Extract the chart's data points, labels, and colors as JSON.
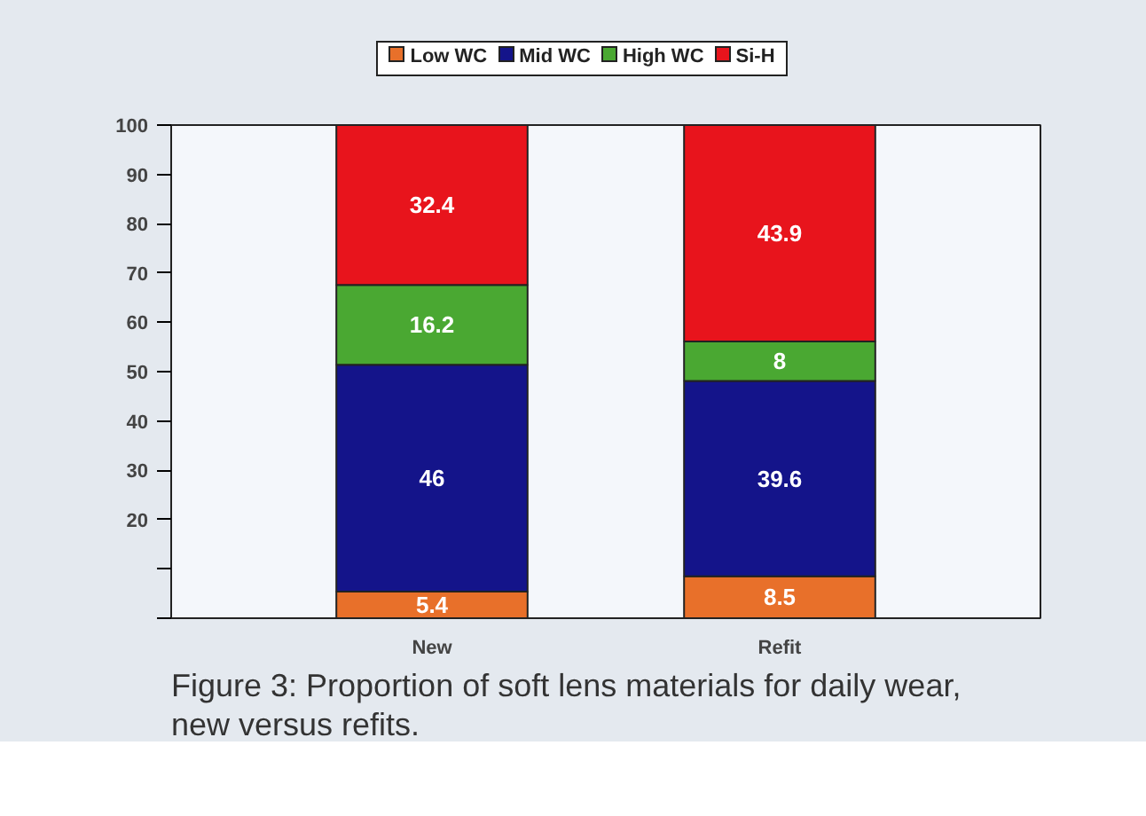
{
  "chart_data": {
    "type": "bar",
    "stacked": true,
    "categories": [
      "New",
      "Refit"
    ],
    "series": [
      {
        "name": "Low WC",
        "color": "#e8702a",
        "values": [
          5.4,
          8.5
        ]
      },
      {
        "name": "Mid WC",
        "color": "#14148a",
        "values": [
          46,
          39.6
        ]
      },
      {
        "name": "High WC",
        "color": "#4aa832",
        "values": [
          16.2,
          8
        ]
      },
      {
        "name": "Si-H",
        "color": "#e8141c",
        "values": [
          32.4,
          43.9
        ]
      }
    ],
    "ylim": [
      0,
      100
    ],
    "yticks": [
      {
        "value": 0,
        "label": null
      },
      {
        "value": 10,
        "label": null
      },
      20,
      30,
      40,
      50,
      60,
      70,
      80,
      90,
      100
    ],
    "data_labels": true,
    "legend": "top",
    "grid": false,
    "annotations": [
      "Figure 3: Proportion of soft lens materials for daily wear, new versus refits."
    ]
  }
}
